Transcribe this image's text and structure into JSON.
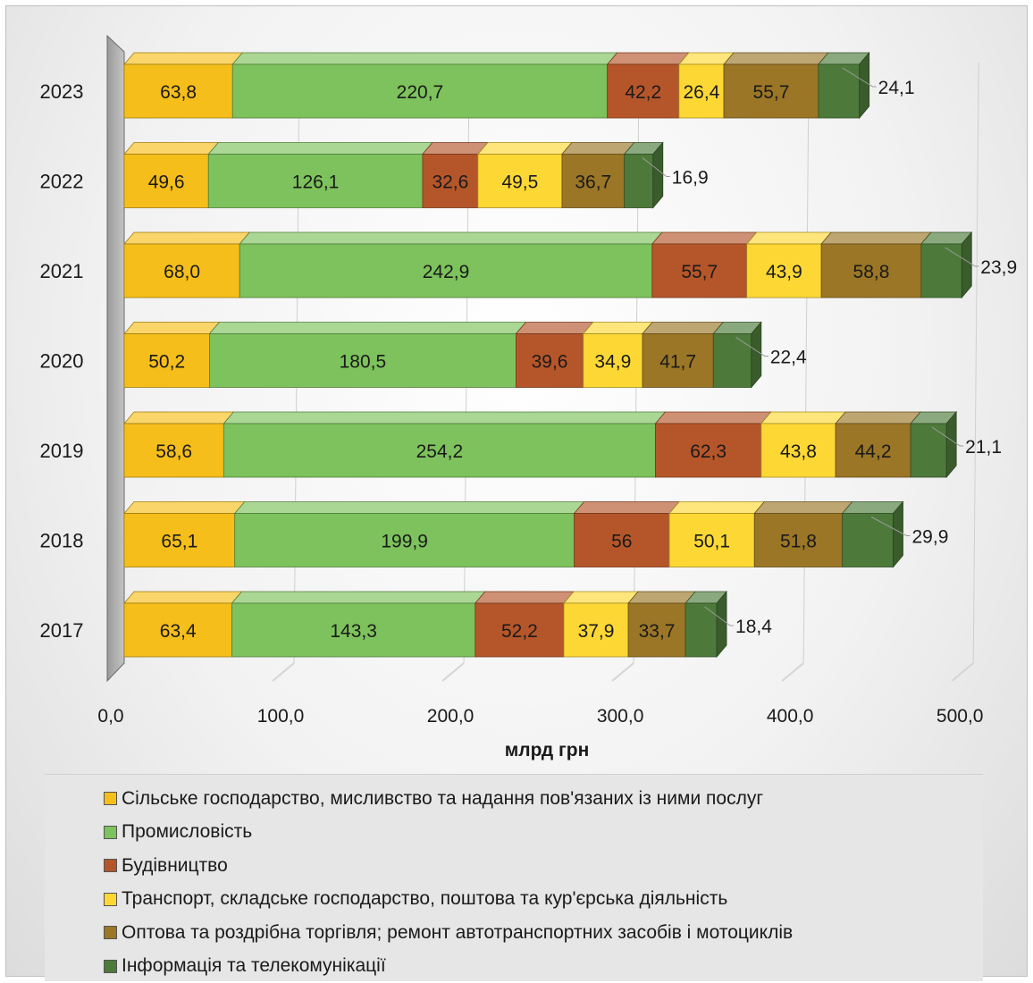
{
  "chart_data": {
    "type": "bar",
    "orientation": "horizontal",
    "stacked": true,
    "categories": [
      "2023",
      "2022",
      "2021",
      "2020",
      "2019",
      "2018",
      "2017"
    ],
    "series": [
      {
        "name": "Сільське господарство, мисливство та надання пов'язаних із ними послуг",
        "color": "#f5be1a",
        "values": [
          63.8,
          49.6,
          68.0,
          50.2,
          58.6,
          65.1,
          63.4
        ],
        "labels": [
          "63,8",
          "49,6",
          "68,0",
          "50,2",
          "58,6",
          "65,1",
          "63,4"
        ]
      },
      {
        "name": "Промисловість",
        "color": "#7dc25c",
        "values": [
          220.7,
          126.1,
          242.9,
          180.5,
          254.2,
          199.9,
          143.3
        ],
        "labels": [
          "220,7",
          "126,1",
          "242,9",
          "180,5",
          "254,2",
          "199,9",
          "143,3"
        ]
      },
      {
        "name": "Будівництво",
        "color": "#b5562a",
        "values": [
          42.2,
          32.6,
          55.7,
          39.6,
          62.3,
          56,
          52.2
        ],
        "labels": [
          "42,2",
          "32,6",
          "55,7",
          "39,6",
          "62,3",
          "56",
          "52,2"
        ]
      },
      {
        "name": "Транспорт, складське господарство, поштова та кур'єрська діяльність",
        "color": "#fdd835",
        "values": [
          26.4,
          49.5,
          43.9,
          34.9,
          43.8,
          50.1,
          37.9
        ],
        "labels": [
          "26,4",
          "49,5",
          "43,9",
          "34,9",
          "43,8",
          "50,1",
          "37,9"
        ]
      },
      {
        "name": "Оптова та роздрібна торгівля; ремонт автотранспортних засобів і мотоциклів",
        "color": "#9a7626",
        "values": [
          55.7,
          36.7,
          58.8,
          41.7,
          44.2,
          51.8,
          33.7
        ],
        "labels": [
          "55,7",
          "36,7",
          "58,8",
          "41,7",
          "44,2",
          "51,8",
          "33,7"
        ]
      },
      {
        "name": "Інформація та телекомунікації",
        "color": "#4d7a3a",
        "values": [
          24.1,
          16.9,
          23.9,
          22.4,
          21.1,
          29.9,
          18.4
        ],
        "labels": [
          "24,1",
          "16,9",
          "23,9",
          "22,4",
          "21,1",
          "29,9",
          "18,4"
        ]
      }
    ],
    "xlabel": "млрд грн",
    "xlim": [
      0,
      500
    ],
    "xticks": [
      0,
      100,
      200,
      300,
      400,
      500
    ],
    "xtick_labels": [
      "0,0",
      "100,0",
      "200,0",
      "300,0",
      "400,0",
      "500,0"
    ],
    "grid": true,
    "legend_position": "bottom"
  }
}
